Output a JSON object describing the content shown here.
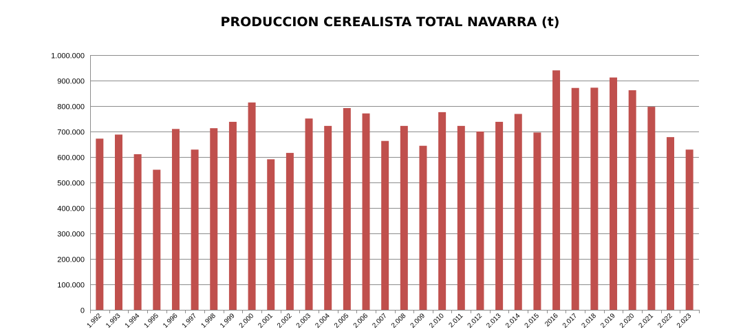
{
  "chart_data": {
    "type": "bar",
    "title": "PRODUCCION CEREALISTA TOTAL NAVARRA (t)",
    "xlabel": "",
    "ylabel": "",
    "categories": [
      "1.992",
      "1.993",
      "1.994",
      "1.995",
      "1.996",
      "1.997",
      "1.998",
      "1.999",
      "2.000",
      "2.001",
      "2.002",
      "2.003",
      "2.004",
      "2.005",
      "2.006",
      "2.007",
      "2.008",
      "2.009",
      "2.010",
      "2.011",
      "2.012",
      "2.013",
      "2.014",
      "2.015",
      "2016",
      "2.017",
      "2.018",
      "2.019",
      "2.020",
      "2.021",
      "2.022",
      "2.023"
    ],
    "values": [
      672000,
      688000,
      611000,
      550000,
      710000,
      629000,
      713000,
      738000,
      814000,
      591000,
      616000,
      751000,
      722000,
      792000,
      771000,
      663000,
      722000,
      644000,
      776000,
      722000,
      700000,
      738000,
      769000,
      696000,
      940000,
      871000,
      872000,
      912000,
      862000,
      797000,
      678000,
      629000
    ],
    "ylim": [
      0,
      1000000
    ],
    "y_ticks": [
      0,
      100000,
      200000,
      300000,
      400000,
      500000,
      600000,
      700000,
      800000,
      900000,
      1000000
    ],
    "y_tick_labels": [
      "0",
      "100.000",
      "200.000",
      "300.000",
      "400.000",
      "500.000",
      "600.000",
      "700.000",
      "800.000",
      "900.000",
      "1.000.000"
    ],
    "grid": true,
    "legend": "none",
    "bar_color": "#C0504D",
    "grid_color": "#8C8C8C"
  }
}
